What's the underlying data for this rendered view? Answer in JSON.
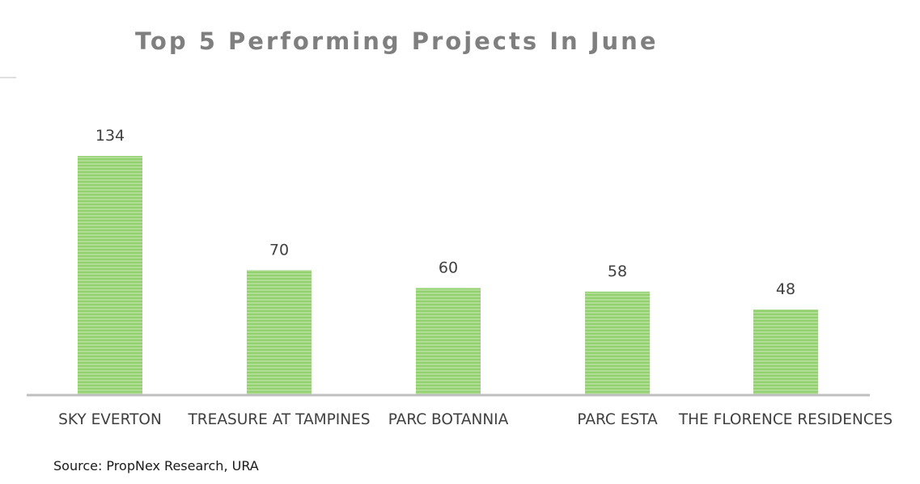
{
  "chart_data": {
    "type": "bar",
    "title": "Top 5 Performing Projects In June",
    "categories": [
      "SKY EVERTON",
      "TREASURE AT TAMPINES",
      "PARC BOTANNIA",
      "PARC ESTA",
      "THE FLORENCE RESIDENCES"
    ],
    "values": [
      134,
      70,
      60,
      58,
      48
    ],
    "data_labels": [
      "134",
      "70",
      "60",
      "58",
      "48"
    ],
    "xlabel": "",
    "ylabel": "",
    "ylim": [
      0,
      140
    ],
    "grid": false,
    "legend": "none",
    "bar_color": "#8fce6b",
    "bar_stripe_color": "#a9dc8b",
    "axis_color": "#bfbfbf"
  },
  "source": "Source: PropNex Research, URA"
}
